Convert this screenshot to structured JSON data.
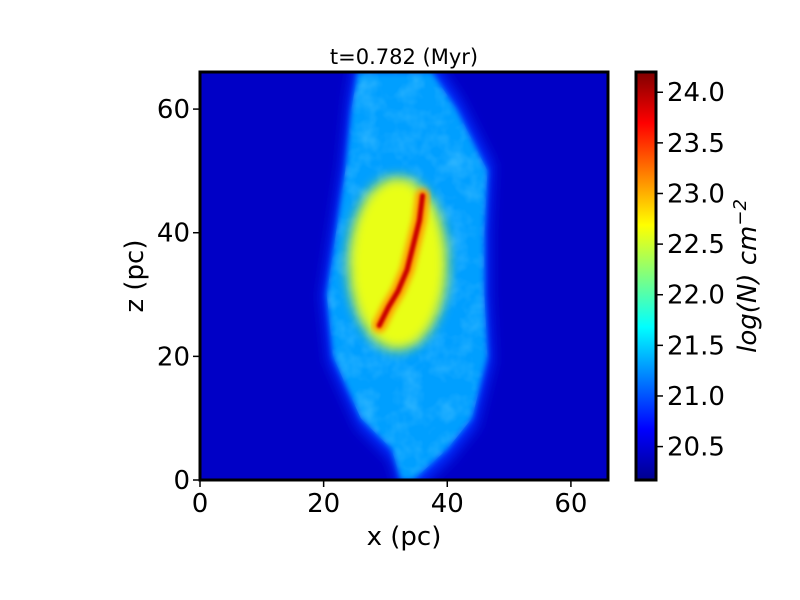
{
  "chart_data": {
    "type": "heatmap",
    "title": "t=0.782 (Myr)",
    "xlabel": "x (pc)",
    "ylabel": "z (pc)",
    "xlim": [
      0,
      66
    ],
    "ylim": [
      0,
      66
    ],
    "x_ticks": [
      "0",
      "20",
      "40",
      "60"
    ],
    "y_ticks": [
      "0",
      "20",
      "40",
      "60"
    ],
    "x_tick_values": [
      0,
      20,
      40,
      60
    ],
    "y_tick_values": [
      0,
      20,
      40,
      60
    ],
    "colorbar": {
      "label_base": "log(N) cm",
      "label_exponent": "−2",
      "range": [
        20.17,
        24.2
      ],
      "ticks": [
        "20.5",
        "21.0",
        "21.5",
        "22.0",
        "22.5",
        "23.0",
        "23.5",
        "24.0"
      ],
      "tick_values": [
        20.5,
        21.0,
        21.5,
        22.0,
        22.5,
        23.0,
        23.5,
        24.0
      ],
      "colormap": "jet"
    },
    "field": {
      "background_level": 20.45,
      "cloud_outline_left": [
        [
          0,
          32.5
        ],
        [
          5,
          31
        ],
        [
          10,
          26
        ],
        [
          20,
          21.5
        ],
        [
          30,
          20.5
        ],
        [
          40,
          22
        ],
        [
          50,
          23.5
        ],
        [
          60,
          24.5
        ],
        [
          66,
          25.5
        ]
      ],
      "cloud_outline_right": [
        [
          0,
          34.5
        ],
        [
          5,
          40
        ],
        [
          10,
          44
        ],
        [
          20,
          46.5
        ],
        [
          30,
          46
        ],
        [
          40,
          46
        ],
        [
          50,
          46.5
        ],
        [
          60,
          41.5
        ],
        [
          66,
          37.5
        ]
      ],
      "cloud_level": 21.3,
      "core_center": [
        32,
        35
      ],
      "core_level": 22.6,
      "filament_points": [
        [
          29,
          25
        ],
        [
          30.5,
          28
        ],
        [
          32,
          30.5
        ],
        [
          33.5,
          34
        ],
        [
          34.5,
          38
        ],
        [
          35.5,
          42
        ],
        [
          36,
          46
        ]
      ],
      "filament_level": 23.9
    }
  }
}
